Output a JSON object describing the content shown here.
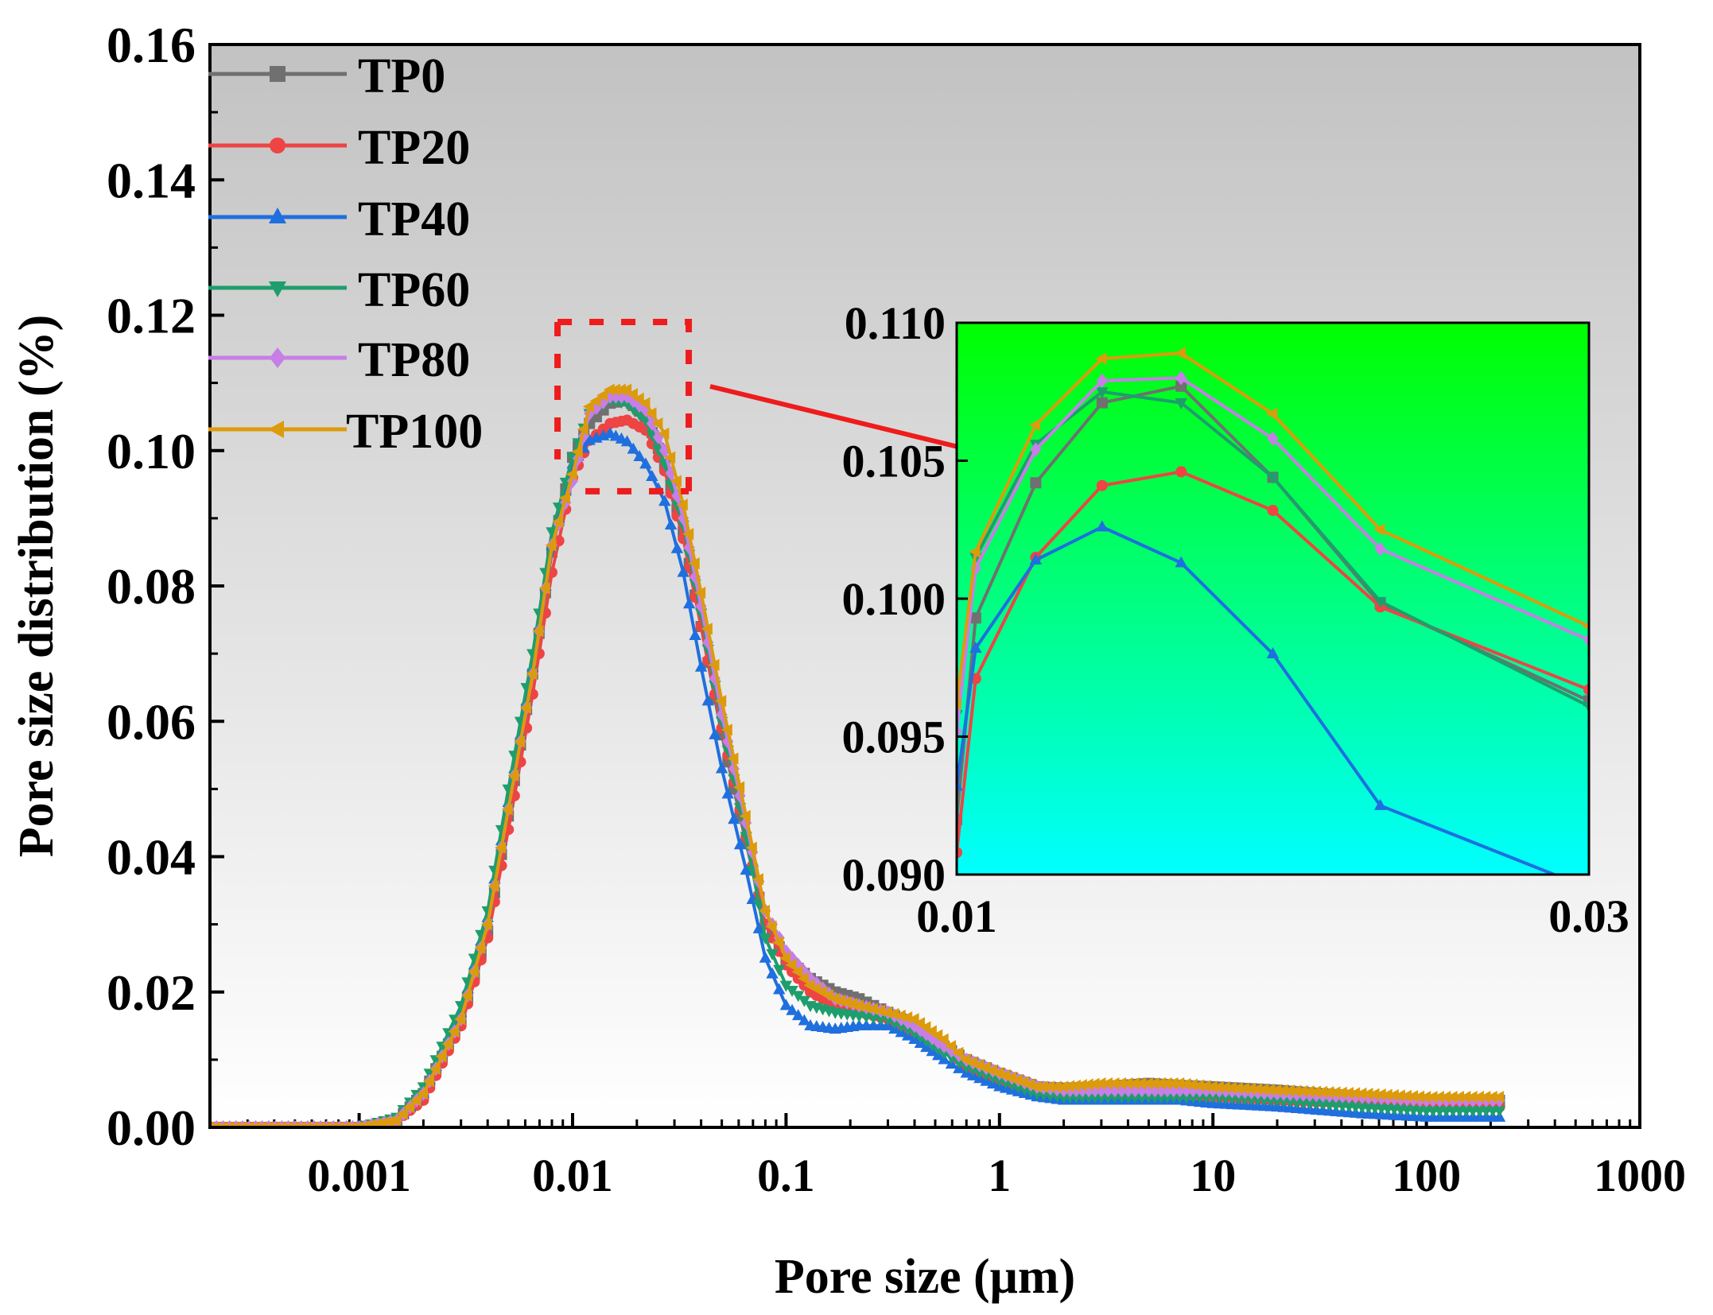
{
  "chart_data": [
    {
      "type": "line",
      "xlabel": "Pore size (μm)",
      "ylabel": "Pore size distribution (%)",
      "xscale": "log",
      "xlim": [
        0.0002,
        1000
      ],
      "ylim": [
        0,
        0.16
      ],
      "xticks": [
        "0.001",
        "0.01",
        "0.1",
        "1",
        "10",
        "100",
        "1000"
      ],
      "yticks": [
        "0.00",
        "0.02",
        "0.04",
        "0.06",
        "0.08",
        "0.10",
        "0.12",
        "0.14",
        "0.16"
      ],
      "legend_position": "top-left",
      "background": "vertical gradient grey (#c2c2c2) to white",
      "annotations": [
        "red dashed box around peak (x 0.0085–0.035, y 0.094–0.119)",
        "red arrow from box to inset"
      ],
      "series": [
        {
          "name": "TP0",
          "color": "#707070",
          "marker": "square",
          "x": [
            0.0002,
            0.0005,
            0.001,
            0.0015,
            0.002,
            0.003,
            0.004,
            0.005,
            0.0065,
            0.008,
            0.01,
            0.012,
            0.015,
            0.018,
            0.022,
            0.027,
            0.033,
            0.04,
            0.05,
            0.065,
            0.08,
            0.1,
            0.13,
            0.17,
            0.22,
            0.3,
            0.4,
            0.55,
            0.7,
            1,
            1.5,
            2,
            3,
            5,
            7,
            10,
            20,
            50,
            100,
            220
          ],
          "y": [
            0,
            0,
            0,
            0.001,
            0.005,
            0.016,
            0.029,
            0.046,
            0.067,
            0.085,
            0.099,
            0.104,
            0.107,
            0.1075,
            0.105,
            0.098,
            0.088,
            0.074,
            0.058,
            0.042,
            0.03,
            0.025,
            0.022,
            0.02,
            0.019,
            0.017,
            0.015,
            0.012,
            0.01,
            0.008,
            0.006,
            0.0058,
            0.006,
            0.0065,
            0.0062,
            0.006,
            0.0055,
            0.0045,
            0.004,
            0.004
          ]
        },
        {
          "name": "TP20",
          "color": "#ee4444",
          "marker": "circle",
          "x": [
            0.0002,
            0.0005,
            0.001,
            0.0015,
            0.002,
            0.003,
            0.004,
            0.005,
            0.0065,
            0.008,
            0.01,
            0.012,
            0.015,
            0.018,
            0.022,
            0.027,
            0.033,
            0.04,
            0.05,
            0.065,
            0.08,
            0.1,
            0.13,
            0.17,
            0.22,
            0.3,
            0.4,
            0.55,
            0.7,
            1,
            1.5,
            2,
            3,
            5,
            7,
            10,
            20,
            50,
            100,
            220
          ],
          "y": [
            0,
            0,
            0,
            0.001,
            0.004,
            0.015,
            0.028,
            0.044,
            0.064,
            0.082,
            0.096,
            0.1015,
            0.104,
            0.1045,
            0.103,
            0.097,
            0.087,
            0.074,
            0.059,
            0.043,
            0.03,
            0.024,
            0.02,
            0.018,
            0.017,
            0.016,
            0.014,
            0.012,
            0.009,
            0.007,
            0.005,
            0.0045,
            0.0045,
            0.0045,
            0.0045,
            0.0045,
            0.004,
            0.0035,
            0.003,
            0.003
          ]
        },
        {
          "name": "TP40",
          "color": "#1f6fdf",
          "marker": "triangle-up",
          "x": [
            0.0002,
            0.0005,
            0.001,
            0.0015,
            0.002,
            0.003,
            0.004,
            0.005,
            0.0065,
            0.008,
            0.01,
            0.012,
            0.015,
            0.018,
            0.022,
            0.027,
            0.033,
            0.04,
            0.05,
            0.065,
            0.08,
            0.1,
            0.13,
            0.17,
            0.22,
            0.3,
            0.4,
            0.55,
            0.7,
            1,
            1.5,
            2,
            3,
            5,
            7,
            10,
            20,
            50,
            100,
            220
          ],
          "y": [
            0,
            0,
            0,
            0.001,
            0.005,
            0.017,
            0.031,
            0.048,
            0.068,
            0.086,
            0.098,
            0.1015,
            0.1025,
            0.1013,
            0.098,
            0.0925,
            0.082,
            0.068,
            0.053,
            0.038,
            0.025,
            0.018,
            0.015,
            0.0145,
            0.015,
            0.015,
            0.013,
            0.01,
            0.008,
            0.006,
            0.0045,
            0.004,
            0.004,
            0.004,
            0.004,
            0.0035,
            0.003,
            0.002,
            0.0015,
            0.0015
          ]
        },
        {
          "name": "TP60",
          "color": "#1e9e6c",
          "marker": "triangle-down",
          "x": [
            0.0002,
            0.0005,
            0.001,
            0.0015,
            0.002,
            0.003,
            0.004,
            0.005,
            0.0065,
            0.008,
            0.01,
            0.012,
            0.015,
            0.018,
            0.022,
            0.027,
            0.033,
            0.04,
            0.05,
            0.065,
            0.08,
            0.1,
            0.13,
            0.17,
            0.22,
            0.3,
            0.4,
            0.55,
            0.7,
            1,
            1.5,
            2,
            3,
            5,
            7,
            10,
            20,
            50,
            100,
            220
          ],
          "y": [
            0,
            0,
            0,
            0.0015,
            0.006,
            0.018,
            0.032,
            0.05,
            0.07,
            0.088,
            0.099,
            0.1055,
            0.1075,
            0.107,
            0.1045,
            0.098,
            0.089,
            0.076,
            0.06,
            0.043,
            0.028,
            0.021,
            0.018,
            0.017,
            0.0165,
            0.016,
            0.014,
            0.011,
            0.009,
            0.007,
            0.005,
            0.0045,
            0.0045,
            0.0045,
            0.0045,
            0.0045,
            0.004,
            0.003,
            0.0025,
            0.0025
          ]
        },
        {
          "name": "TP80",
          "color": "#c77ee6",
          "marker": "diamond",
          "x": [
            0.0002,
            0.0005,
            0.001,
            0.0015,
            0.002,
            0.003,
            0.004,
            0.005,
            0.0065,
            0.008,
            0.01,
            0.012,
            0.015,
            0.018,
            0.022,
            0.027,
            0.033,
            0.04,
            0.05,
            0.065,
            0.08,
            0.1,
            0.13,
            0.17,
            0.22,
            0.3,
            0.4,
            0.55,
            0.7,
            1,
            1.5,
            2,
            3,
            5,
            7,
            10,
            20,
            50,
            100,
            220
          ],
          "y": [
            0,
            0,
            0,
            0.001,
            0.005,
            0.016,
            0.03,
            0.047,
            0.067,
            0.086,
            0.0955,
            0.1055,
            0.108,
            0.108,
            0.106,
            0.1,
            0.09,
            0.077,
            0.061,
            0.045,
            0.032,
            0.026,
            0.022,
            0.019,
            0.018,
            0.017,
            0.015,
            0.012,
            0.01,
            0.008,
            0.006,
            0.0055,
            0.0055,
            0.0055,
            0.0055,
            0.0055,
            0.005,
            0.0045,
            0.004,
            0.004
          ]
        },
        {
          "name": "TP100",
          "color": "#dc9b0c",
          "marker": "triangle-left",
          "x": [
            0.0002,
            0.0005,
            0.001,
            0.0015,
            0.002,
            0.003,
            0.004,
            0.005,
            0.0065,
            0.008,
            0.01,
            0.012,
            0.015,
            0.018,
            0.022,
            0.027,
            0.033,
            0.04,
            0.05,
            0.065,
            0.08,
            0.1,
            0.13,
            0.17,
            0.22,
            0.3,
            0.4,
            0.55,
            0.7,
            1,
            1.5,
            2,
            3,
            5,
            7,
            10,
            20,
            50,
            100,
            220
          ],
          "y": [
            0,
            0,
            0,
            0.001,
            0.005,
            0.016,
            0.03,
            0.047,
            0.067,
            0.086,
            0.0965,
            0.1065,
            0.109,
            0.109,
            0.107,
            0.1025,
            0.092,
            0.079,
            0.063,
            0.046,
            0.032,
            0.025,
            0.021,
            0.019,
            0.018,
            0.017,
            0.016,
            0.013,
            0.01,
            0.008,
            0.006,
            0.006,
            0.0065,
            0.0065,
            0.0065,
            0.006,
            0.0055,
            0.005,
            0.0045,
            0.0045
          ]
        }
      ]
    },
    {
      "type": "line",
      "inset": true,
      "xscale": "linear",
      "xlim": [
        0.01,
        0.03
      ],
      "ylim": [
        0.09,
        0.11
      ],
      "xticks": [
        "0.01",
        "0.03"
      ],
      "yticks": [
        "0.090",
        "0.095",
        "0.100",
        "0.105",
        "0.110"
      ],
      "background": "vertical gradient green (#00ff00) to cyan (#00ffff)",
      "series": [
        {
          "name": "TP0",
          "color": "#707070",
          "x": [
            0.01,
            0.0106,
            0.0125,
            0.0146,
            0.0171,
            0.02,
            0.0234,
            0.03
          ],
          "y": [
            0.092,
            0.0993,
            0.1042,
            0.1071,
            0.1077,
            0.1044,
            0.0998,
            0.0963
          ]
        },
        {
          "name": "TP20",
          "color": "#ee4444",
          "x": [
            0.01,
            0.0106,
            0.0125,
            0.0146,
            0.0171,
            0.02,
            0.0234,
            0.03
          ],
          "y": [
            0.0908,
            0.0971,
            0.1015,
            0.1041,
            0.1046,
            0.1032,
            0.0997,
            0.0967
          ]
        },
        {
          "name": "TP40",
          "color": "#1f6fdf",
          "x": [
            0.01,
            0.0106,
            0.0125,
            0.0146,
            0.0171,
            0.02,
            0.0234,
            0.03
          ],
          "y": [
            0.0932,
            0.0982,
            0.1014,
            0.1026,
            0.1013,
            0.098,
            0.0925,
            0.0895
          ]
        },
        {
          "name": "TP60",
          "color": "#1e9e6c",
          "x": [
            0.01,
            0.0106,
            0.0125,
            0.0146,
            0.0171,
            0.02,
            0.0234,
            0.03
          ],
          "y": [
            0.0958,
            0.1015,
            0.1056,
            0.1075,
            0.1071,
            0.1044,
            0.0999,
            0.0961
          ]
        },
        {
          "name": "TP80",
          "color": "#c77ee6",
          "x": [
            0.01,
            0.0106,
            0.0125,
            0.0146,
            0.0171,
            0.02,
            0.0234,
            0.03
          ],
          "y": [
            0.0952,
            0.1011,
            0.1054,
            0.1079,
            0.108,
            0.1058,
            0.1018,
            0.0985
          ]
        },
        {
          "name": "TP100",
          "color": "#dc9b0c",
          "x": [
            0.01,
            0.0106,
            0.0125,
            0.0146,
            0.0171,
            0.02,
            0.0234,
            0.03
          ],
          "y": [
            0.0962,
            0.1017,
            0.1063,
            0.1087,
            0.1089,
            0.1067,
            0.1025,
            0.099
          ]
        }
      ]
    }
  ]
}
